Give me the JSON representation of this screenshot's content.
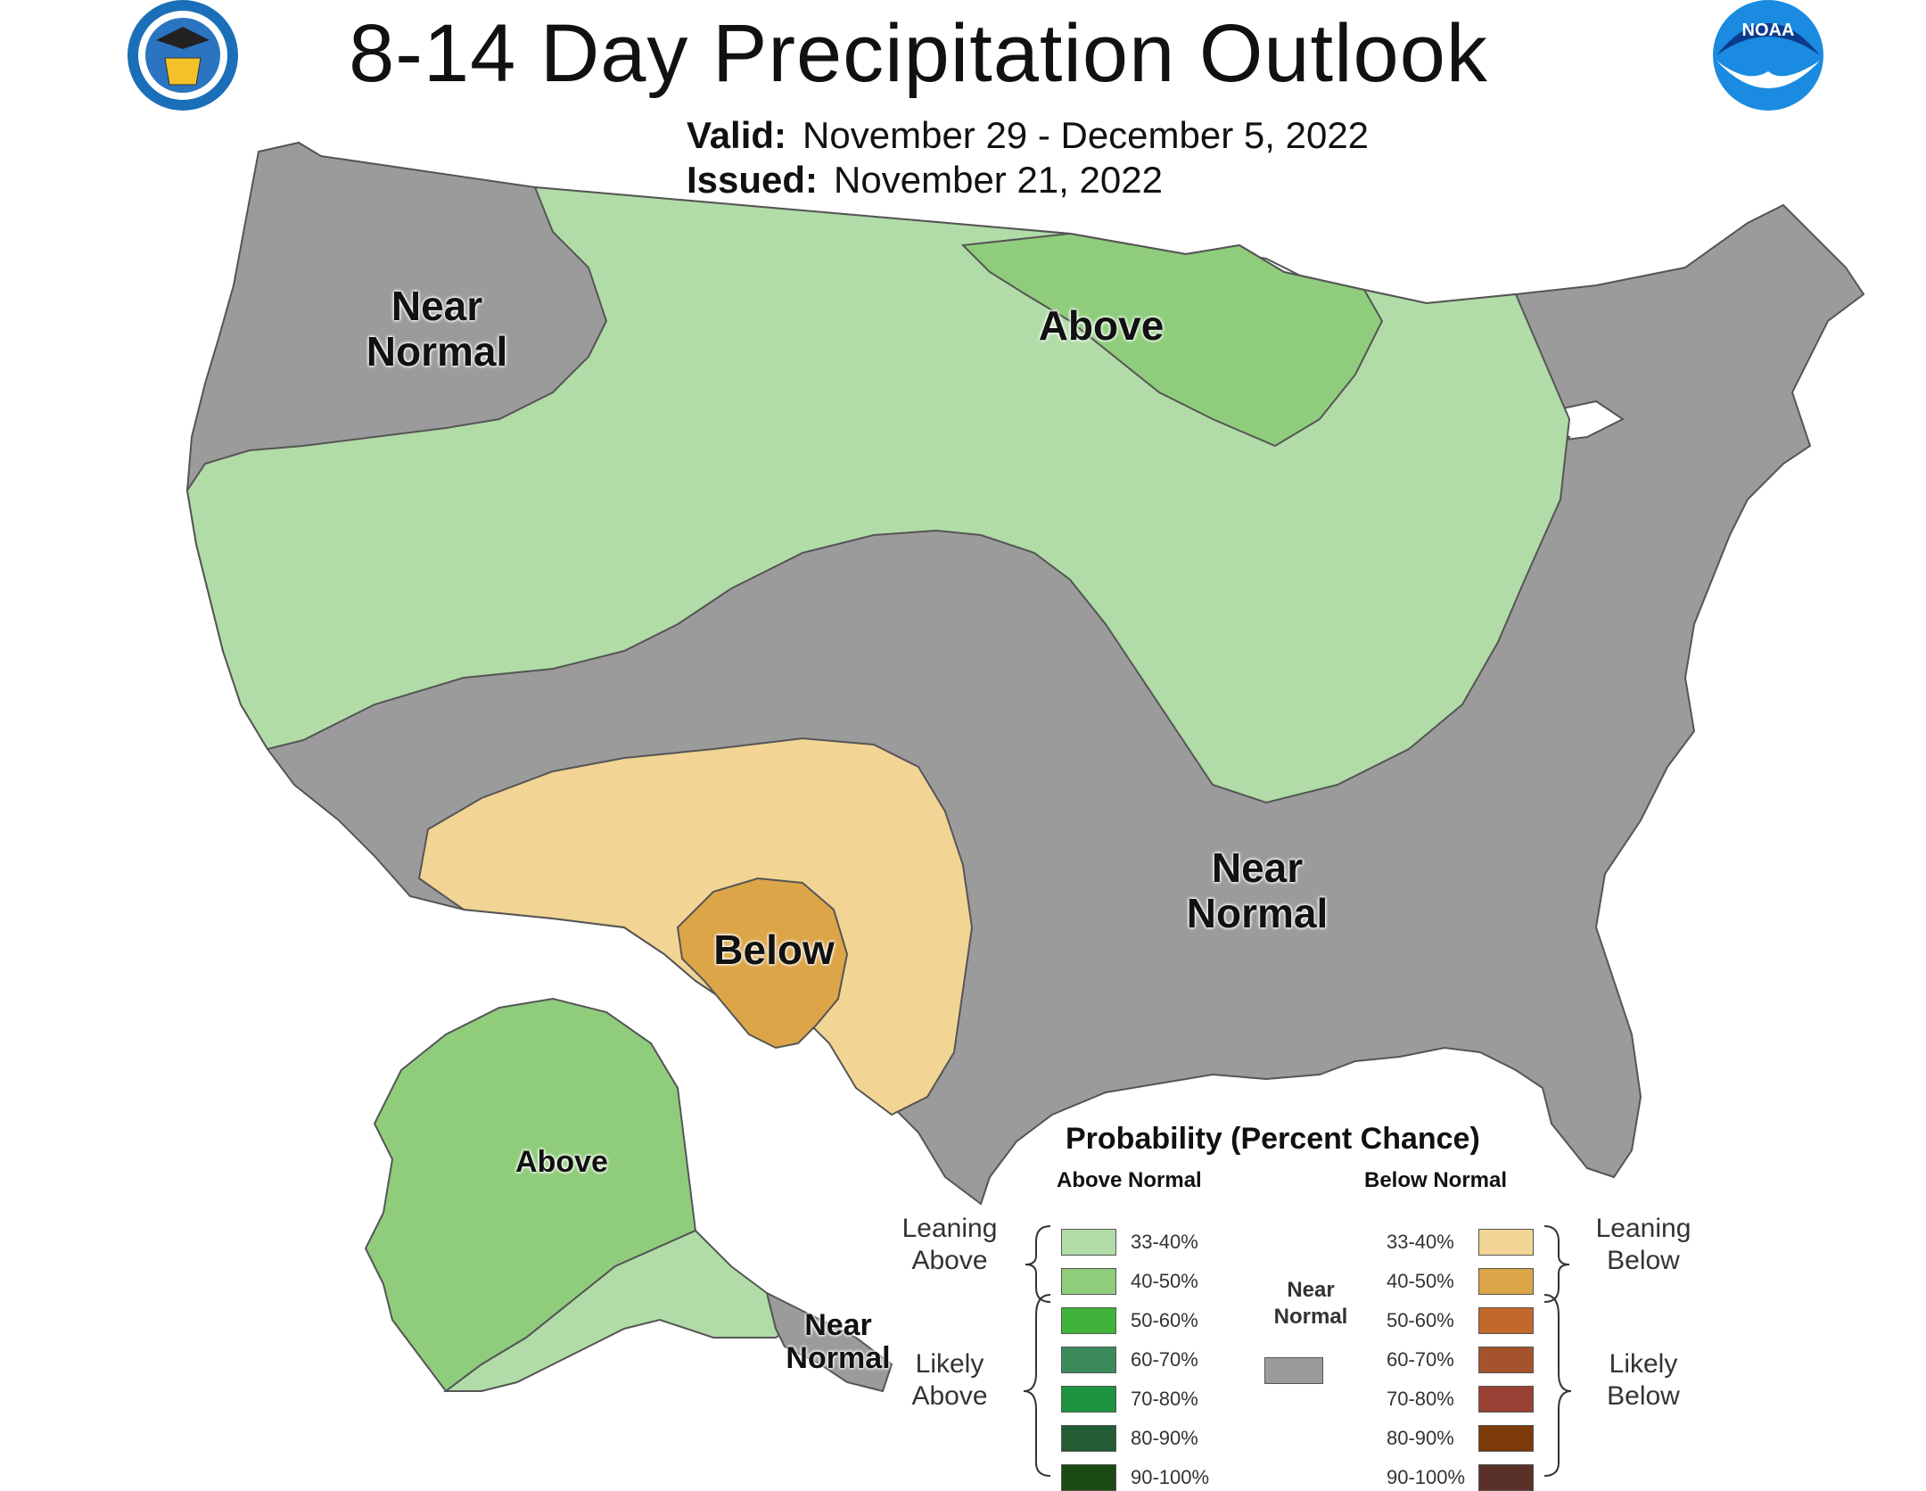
{
  "title": "8-14 Day Precipitation Outlook",
  "valid_label": "Valid:",
  "valid_value": "November 29 - December 5, 2022",
  "issued_label": "Issued:",
  "issued_value": "November 21, 2022",
  "logos": {
    "left": "commerce-seal-icon",
    "right": "noaa-logo-icon",
    "noaa_text": "NOAA"
  },
  "regions": {
    "nw_near_normal": "Near\nNormal",
    "mw_above": "Above",
    "sw_below": "Below",
    "se_near_normal": "Near\nNormal",
    "ak_above": "Above",
    "ak_near_normal": "Near\nNormal"
  },
  "legend": {
    "title": "Probability (Percent Chance)",
    "above_header": "Above Normal",
    "below_header": "Below Normal",
    "near_normal_label": "Near\nNormal",
    "leaning_above": "Leaning\nAbove",
    "likely_above": "Likely\nAbove",
    "leaning_below": "Leaning\nBelow",
    "likely_below": "Likely\nBelow",
    "near_normal_color": "#9b9b9b",
    "above": [
      {
        "label": "33-40%",
        "color": "#b1dca7"
      },
      {
        "label": "40-50%",
        "color": "#8fcd7c"
      },
      {
        "label": "50-60%",
        "color": "#40b43a"
      },
      {
        "label": "60-70%",
        "color": "#3c8a5c"
      },
      {
        "label": "70-80%",
        "color": "#1e9440"
      },
      {
        "label": "80-90%",
        "color": "#235c35"
      },
      {
        "label": "90-100%",
        "color": "#1b4a14"
      }
    ],
    "below": [
      {
        "label": "33-40%",
        "color": "#f2d594"
      },
      {
        "label": "40-50%",
        "color": "#dba548"
      },
      {
        "label": "50-60%",
        "color": "#c3682c"
      },
      {
        "label": "60-70%",
        "color": "#a5532d"
      },
      {
        "label": "70-80%",
        "color": "#994134"
      },
      {
        "label": "80-90%",
        "color": "#7d3a0a"
      },
      {
        "label": "90-100%",
        "color": "#5a3128"
      }
    ]
  }
}
